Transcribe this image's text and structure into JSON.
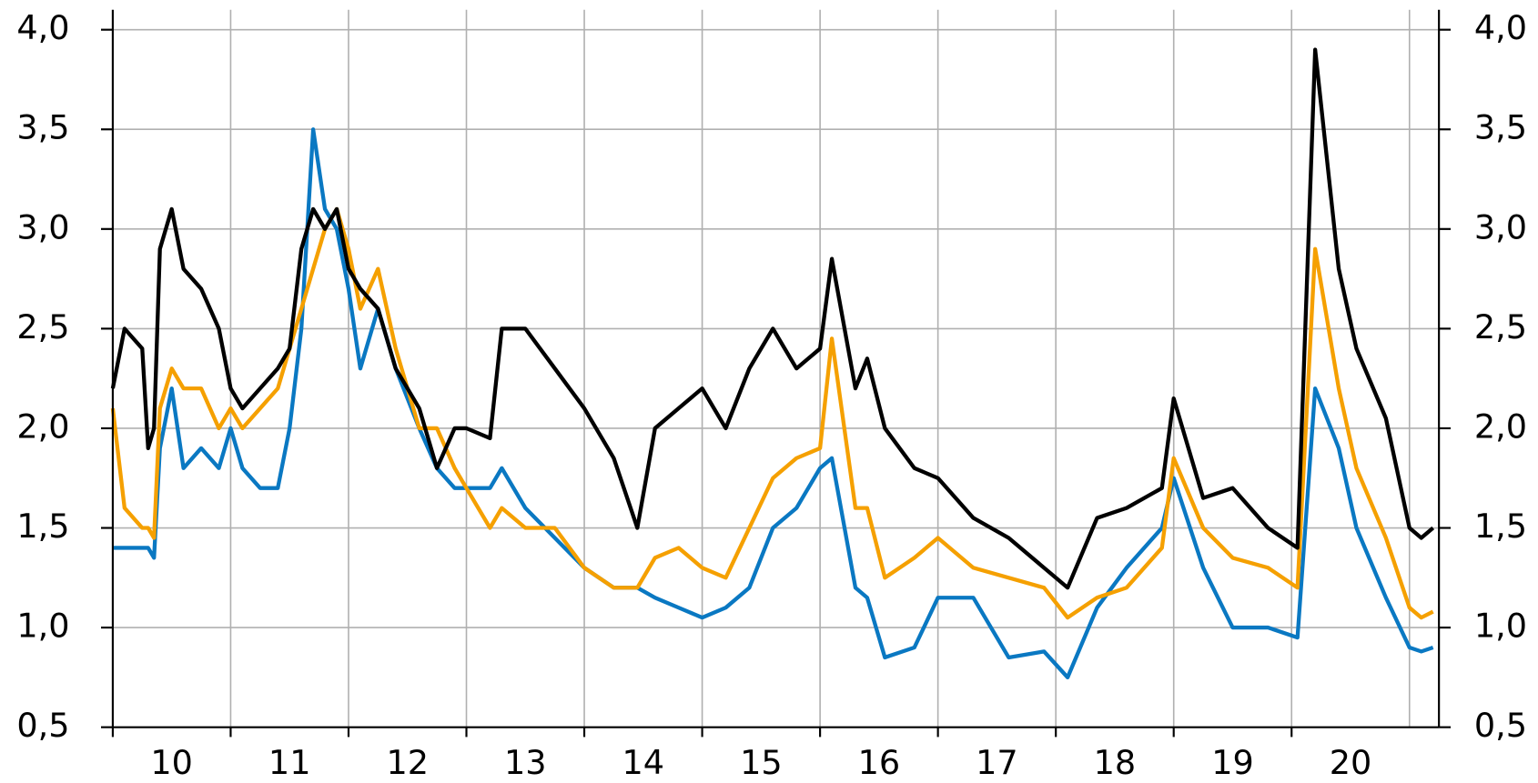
{
  "chart_data": {
    "type": "line",
    "x": [
      10.0,
      10.1,
      10.25,
      10.3,
      10.35,
      10.4,
      10.5,
      10.6,
      10.75,
      10.9,
      11.0,
      11.1,
      11.25,
      11.4,
      11.5,
      11.6,
      11.7,
      11.8,
      11.9,
      12.0,
      12.1,
      12.25,
      12.4,
      12.6,
      12.75,
      12.9,
      13.0,
      13.2,
      13.3,
      13.5,
      13.75,
      14.0,
      14.25,
      14.45,
      14.6,
      14.8,
      15.0,
      15.2,
      15.4,
      15.6,
      15.8,
      16.0,
      16.1,
      16.3,
      16.4,
      16.55,
      16.8,
      17.0,
      17.3,
      17.6,
      17.9,
      18.1,
      18.35,
      18.6,
      18.9,
      19.0,
      19.25,
      19.5,
      19.8,
      20.05,
      20.2,
      20.4,
      20.55,
      20.8,
      21.0,
      21.1,
      21.2
    ],
    "series": [
      {
        "color": "#000000",
        "values": [
          2.2,
          2.5,
          2.4,
          1.9,
          2.0,
          2.9,
          3.1,
          2.8,
          2.7,
          2.5,
          2.2,
          2.1,
          2.2,
          2.3,
          2.4,
          2.9,
          3.1,
          3.0,
          3.1,
          2.8,
          2.7,
          2.6,
          2.3,
          2.1,
          1.8,
          2.0,
          2.0,
          1.95,
          2.5,
          2.5,
          2.3,
          2.1,
          1.85,
          1.5,
          2.0,
          2.1,
          2.2,
          2.0,
          2.3,
          2.5,
          2.3,
          2.4,
          2.85,
          2.2,
          2.35,
          2.0,
          1.8,
          1.75,
          1.55,
          1.45,
          1.3,
          1.2,
          1.55,
          1.6,
          1.7,
          2.15,
          1.65,
          1.7,
          1.5,
          1.4,
          3.9,
          2.8,
          2.4,
          2.05,
          1.5,
          1.45,
          1.5
        ]
      },
      {
        "color": "#f5a000",
        "values": [
          2.1,
          1.6,
          1.5,
          1.5,
          1.45,
          2.1,
          2.3,
          2.2,
          2.2,
          2.0,
          2.1,
          2.0,
          2.1,
          2.2,
          2.4,
          2.6,
          2.8,
          3.0,
          3.1,
          2.9,
          2.6,
          2.8,
          2.4,
          2.0,
          2.0,
          1.8,
          1.7,
          1.5,
          1.6,
          1.5,
          1.5,
          1.3,
          1.2,
          1.2,
          1.35,
          1.4,
          1.3,
          1.25,
          1.5,
          1.75,
          1.85,
          1.9,
          2.45,
          1.6,
          1.6,
          1.25,
          1.35,
          1.45,
          1.3,
          1.25,
          1.2,
          1.05,
          1.15,
          1.2,
          1.4,
          1.85,
          1.5,
          1.35,
          1.3,
          1.2,
          2.9,
          2.2,
          1.8,
          1.45,
          1.1,
          1.05,
          1.08
        ]
      },
      {
        "color": "#0a78c2",
        "values": [
          1.4,
          1.4,
          1.4,
          1.4,
          1.35,
          1.9,
          2.2,
          1.8,
          1.9,
          1.8,
          2.0,
          1.8,
          1.7,
          1.7,
          2.0,
          2.5,
          3.5,
          3.1,
          3.0,
          2.7,
          2.3,
          2.6,
          2.3,
          2.0,
          1.8,
          1.7,
          1.7,
          1.7,
          1.8,
          1.6,
          1.45,
          1.3,
          1.2,
          1.2,
          1.15,
          1.1,
          1.05,
          1.1,
          1.2,
          1.5,
          1.6,
          1.8,
          1.85,
          1.2,
          1.15,
          0.85,
          0.9,
          1.15,
          1.15,
          0.85,
          0.88,
          0.75,
          1.1,
          1.3,
          1.5,
          1.75,
          1.3,
          1.0,
          1.0,
          0.95,
          2.2,
          1.9,
          1.5,
          1.15,
          0.9,
          0.88,
          0.9
        ]
      }
    ],
    "xlim": [
      10,
      21.25
    ],
    "xticks": [
      10,
      11,
      12,
      13,
      14,
      15,
      16,
      17,
      18,
      19,
      20
    ],
    "ylim": [
      0.5,
      4.1
    ],
    "yticks": [
      {
        "value": 0.5,
        "label": "0,5"
      },
      {
        "value": 1.0,
        "label": "1,0"
      },
      {
        "value": 1.5,
        "label": "1,5"
      },
      {
        "value": 2.0,
        "label": "2,0"
      },
      {
        "value": 2.5,
        "label": "2,5"
      },
      {
        "value": 3.0,
        "label": "3,0"
      },
      {
        "value": 3.5,
        "label": "3,5"
      },
      {
        "value": 4.0,
        "label": "4,0"
      }
    ],
    "grid": true
  }
}
